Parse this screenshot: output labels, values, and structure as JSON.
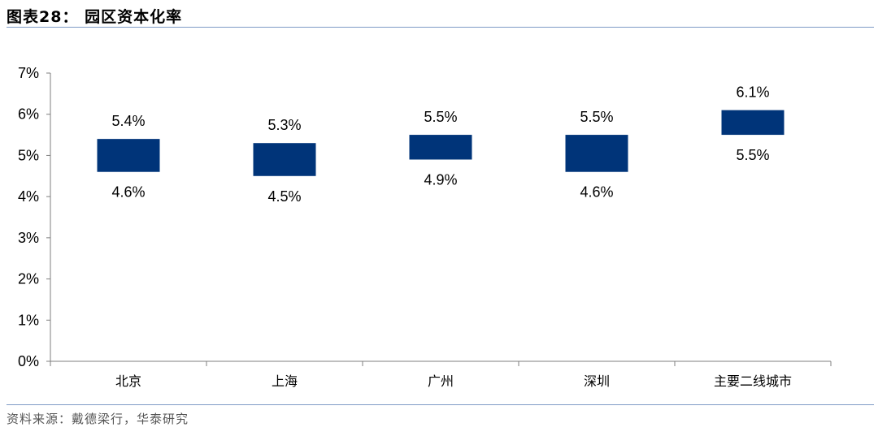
{
  "figure": {
    "label": "图表28：",
    "title": "园区资本化率",
    "source": "资料来源：戴德梁行，华泰研究"
  },
  "colors": {
    "bar": "#003479",
    "rule": "#7f9bc6",
    "axis": "#7f7f7f"
  },
  "chart_data": {
    "type": "bar",
    "subtype": "floating-range",
    "categories": [
      "北京",
      "上海",
      "广州",
      "深圳",
      "主要二线城市"
    ],
    "low": [
      4.6,
      4.5,
      4.9,
      4.6,
      5.5
    ],
    "high": [
      5.4,
      5.3,
      5.5,
      5.5,
      6.1
    ],
    "low_labels": [
      "4.6%",
      "4.5%",
      "4.9%",
      "4.6%",
      "5.5%"
    ],
    "high_labels": [
      "5.4%",
      "5.3%",
      "5.5%",
      "5.5%",
      "6.1%"
    ],
    "yticks": [
      "0%",
      "1%",
      "2%",
      "3%",
      "4%",
      "5%",
      "6%",
      "7%"
    ],
    "ylim": [
      0,
      7
    ],
    "grid": false,
    "legend": "none"
  }
}
